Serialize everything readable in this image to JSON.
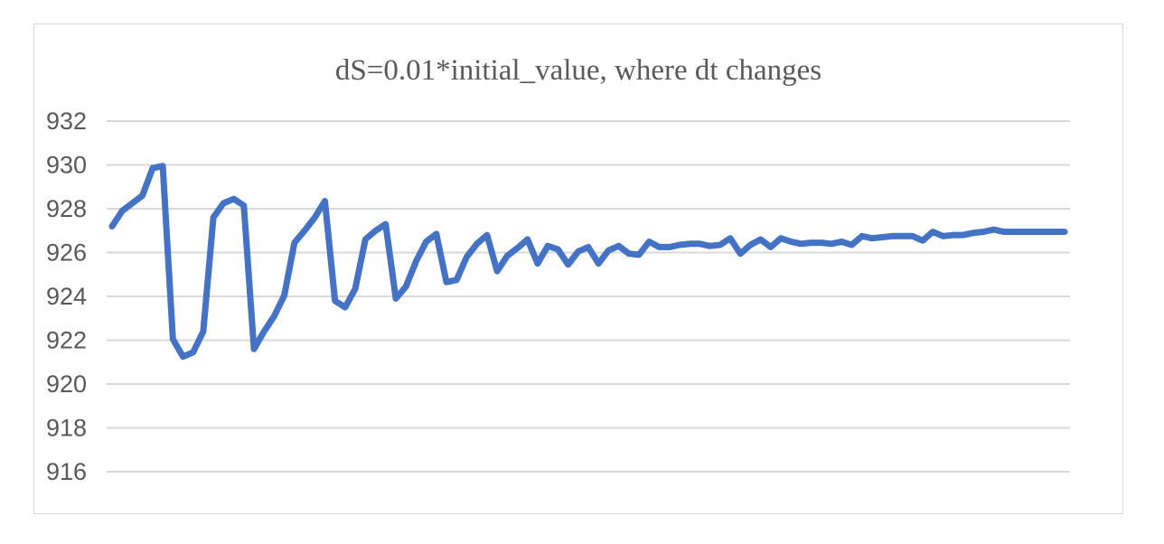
{
  "chart_data": {
    "type": "line",
    "title": "dS=0.01*initial_value, where dt changes",
    "xlabel": "",
    "ylabel": "",
    "ylim": [
      916,
      932
    ],
    "yticks": [
      916,
      918,
      920,
      922,
      924,
      926,
      928,
      930,
      932
    ],
    "grid": true,
    "legend": "none",
    "x": [
      1,
      2,
      3,
      4,
      5,
      6,
      7,
      8,
      9,
      10,
      11,
      12,
      13,
      14,
      15,
      16,
      17,
      18,
      19,
      20,
      21,
      22,
      23,
      24,
      25,
      26,
      27,
      28,
      29,
      30,
      31,
      32,
      33,
      34,
      35,
      36,
      37,
      38,
      39,
      40,
      41,
      42,
      43,
      44,
      45,
      46,
      47,
      48,
      49,
      50,
      51,
      52,
      53,
      54,
      55,
      56,
      57,
      58,
      59,
      60,
      61,
      62,
      63,
      64,
      65,
      66,
      67,
      68,
      69,
      70,
      71,
      72,
      73,
      74,
      75,
      76,
      77,
      78,
      79,
      80,
      81,
      82,
      83,
      84,
      85,
      86,
      87,
      88,
      89,
      90,
      91,
      92,
      93,
      94,
      95
    ],
    "series": [
      {
        "color": "#4472C4",
        "values": [
          927.2,
          927.9,
          928.25,
          928.6,
          929.85,
          929.95,
          922.05,
          921.25,
          921.45,
          922.4,
          927.6,
          928.25,
          928.45,
          928.15,
          921.6,
          922.4,
          923.1,
          924.05,
          926.45,
          927.0,
          927.6,
          928.35,
          923.8,
          923.5,
          924.35,
          926.6,
          927.0,
          927.3,
          923.9,
          924.45,
          925.6,
          926.5,
          926.85,
          924.65,
          924.75,
          925.8,
          926.4,
          926.8,
          925.15,
          925.85,
          926.2,
          926.6,
          925.5,
          926.3,
          926.15,
          925.45,
          926.05,
          926.25,
          925.5,
          926.1,
          926.3,
          925.95,
          925.9,
          926.5,
          926.25,
          926.25,
          926.35,
          926.4,
          926.4,
          926.3,
          926.35,
          926.65,
          925.95,
          926.35,
          926.6,
          926.25,
          926.65,
          926.5,
          926.4,
          926.45,
          926.45,
          926.4,
          926.5,
          926.35,
          926.75,
          926.65,
          926.7,
          926.75,
          926.75,
          926.75,
          926.55,
          926.95,
          926.75,
          926.8,
          926.8,
          926.9,
          926.95,
          927.05,
          926.95,
          926.95,
          926.95,
          926.95,
          926.95,
          926.95,
          926.95
        ]
      }
    ]
  }
}
